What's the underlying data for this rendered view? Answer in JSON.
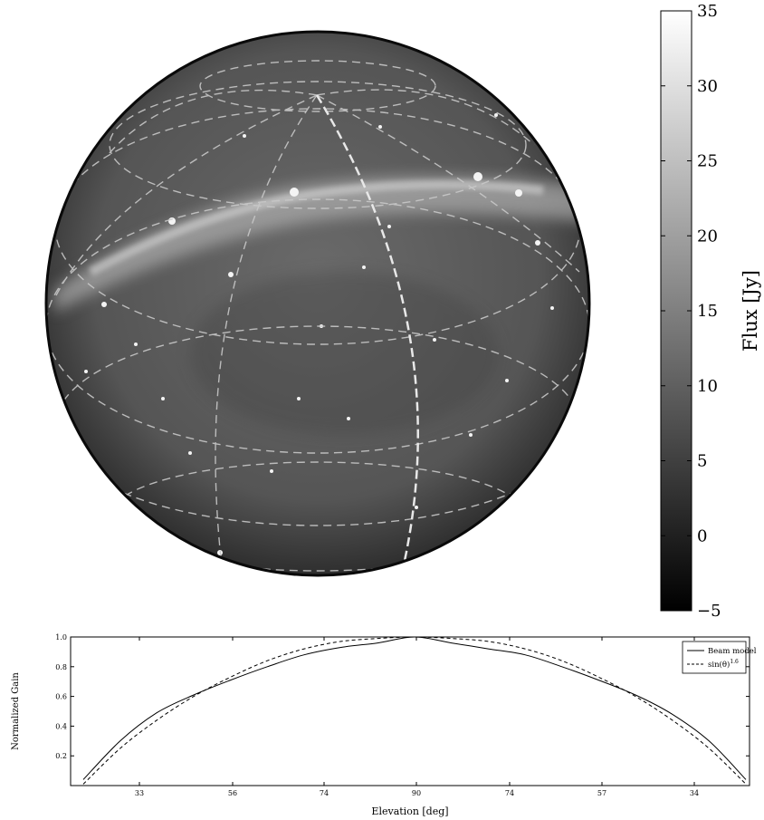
{
  "chart_data": [
    {
      "type": "heatmap",
      "title": "",
      "projection": "all-sky orthographic (zenith centered)",
      "colormap": "gray",
      "colorbar": {
        "label": "Flux [Jy]",
        "range": [
          -5,
          35
        ],
        "ticks": [
          -5,
          0,
          5,
          10,
          15,
          20,
          25,
          30,
          35
        ],
        "tick_labels": [
          "−5",
          "0",
          "5",
          "10",
          "15",
          "20",
          "25",
          "30",
          "35"
        ]
      },
      "grid": true
    },
    {
      "type": "line",
      "xlabel": "Elevation [deg]",
      "ylabel": "Normalized Gain",
      "x_tick_labels": [
        "33",
        "56",
        "74",
        "90",
        "74",
        "57",
        "34"
      ],
      "y_ticks": [
        0.2,
        0.4,
        0.6,
        0.8,
        1.0
      ],
      "y_tick_labels": [
        "0.2",
        "0.4",
        "0.6",
        "0.8",
        "1.0"
      ],
      "ylim": [
        0.0,
        1.0
      ],
      "legend_position": "top-right",
      "series": [
        {
          "name": "Beam model",
          "style": "solid",
          "x": [
            -90,
            -80,
            -70,
            -60,
            -50,
            -40,
            -30,
            -20,
            -10,
            0,
            10,
            20,
            30,
            40,
            50,
            60,
            70,
            80,
            90
          ],
          "y": [
            0.04,
            0.3,
            0.49,
            0.61,
            0.71,
            0.8,
            0.88,
            0.93,
            0.96,
            1.0,
            0.96,
            0.92,
            0.88,
            0.8,
            0.71,
            0.61,
            0.48,
            0.3,
            0.04
          ]
        },
        {
          "name": "sin(θ)^1.6",
          "style": "dashed",
          "x": [
            -90,
            -80,
            -70,
            -60,
            -50,
            -40,
            -30,
            -20,
            -10,
            0,
            10,
            20,
            30,
            40,
            50,
            60,
            70,
            80,
            90
          ],
          "y": [
            0.01,
            0.25,
            0.44,
            0.6,
            0.73,
            0.84,
            0.92,
            0.97,
            0.99,
            1.0,
            0.99,
            0.97,
            0.92,
            0.84,
            0.73,
            0.6,
            0.44,
            0.25,
            0.01
          ]
        }
      ]
    }
  ]
}
